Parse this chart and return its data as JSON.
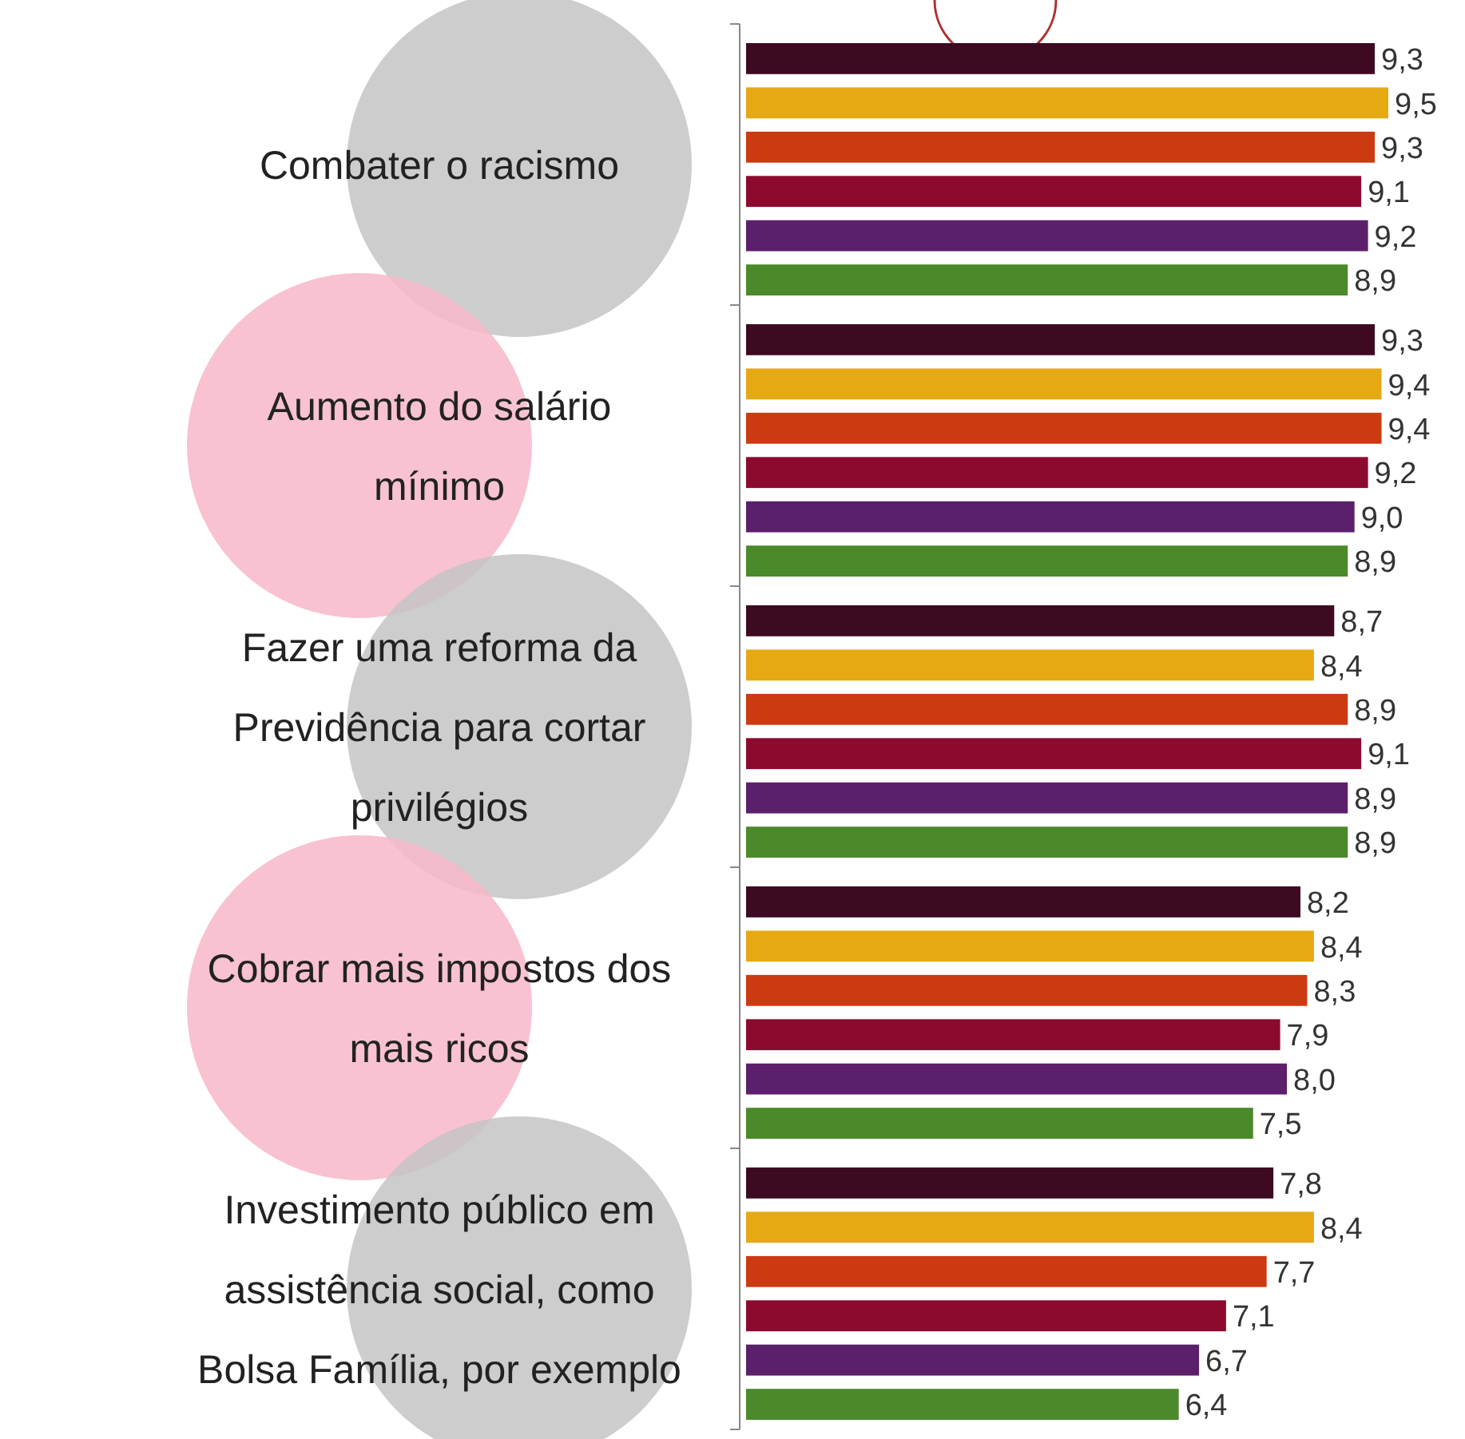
{
  "chart_data": {
    "type": "bar",
    "orientation": "horizontal",
    "categories": [
      "Combater o racismo",
      "Aumento do salário\nmínimo",
      "Fazer uma reforma da\nPrevidência para cortar\nprivilégios",
      "Cobrar mais impostos dos\nmais ricos",
      "Investimento público em\nassistência social, como\nBolsa Família, por exemplo"
    ],
    "series": [
      {
        "color": "#3d0a22",
        "values": [
          9.3,
          9.3,
          8.7,
          8.2,
          7.8
        ],
        "value_labels": [
          "9,3",
          "9,3",
          "8,7",
          "8,2",
          "7,8"
        ]
      },
      {
        "color": "#e5a913",
        "values": [
          9.5,
          9.4,
          8.4,
          8.4,
          8.4
        ],
        "value_labels": [
          "9,5",
          "9,4",
          "8,4",
          "8,4",
          "8,4"
        ]
      },
      {
        "color": "#cc3a12",
        "values": [
          9.3,
          9.4,
          8.9,
          8.3,
          7.7
        ],
        "value_labels": [
          "9,3",
          "9,4",
          "8,9",
          "8,3",
          "7,7"
        ]
      },
      {
        "color": "#8c0a2e",
        "values": [
          9.1,
          9.2,
          9.1,
          7.9,
          7.1
        ],
        "value_labels": [
          "9,1",
          "9,2",
          "9,1",
          "7,9",
          "7,1"
        ]
      },
      {
        "color": "#5c1f6b",
        "values": [
          9.2,
          9.0,
          8.9,
          8.0,
          6.7
        ],
        "value_labels": [
          "9,2",
          "9,0",
          "8,9",
          "8,0",
          "6,7"
        ]
      },
      {
        "color": "#4a8a2a",
        "values": [
          8.9,
          8.9,
          8.9,
          7.5,
          6.4
        ],
        "value_labels": [
          "8,9",
          "8,9",
          "8,9",
          "7,5",
          "6,4"
        ]
      }
    ]
  }
}
